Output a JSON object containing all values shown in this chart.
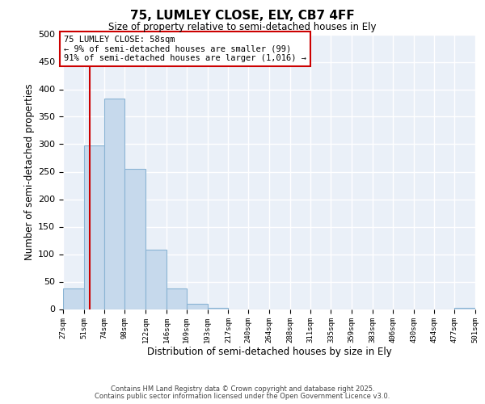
{
  "title": "75, LUMLEY CLOSE, ELY, CB7 4FF",
  "subtitle": "Size of property relative to semi-detached houses in Ely",
  "xlabel": "Distribution of semi-detached houses by size in Ely",
  "ylabel": "Number of semi-detached properties",
  "bin_edges": [
    27,
    51,
    74,
    98,
    122,
    146,
    169,
    193,
    217,
    240,
    264,
    288,
    311,
    335,
    359,
    383,
    406,
    430,
    454,
    477,
    501
  ],
  "bar_heights": [
    37,
    298,
    383,
    255,
    108,
    37,
    10,
    2,
    0,
    0,
    0,
    0,
    0,
    0,
    0,
    0,
    0,
    0,
    0,
    2
  ],
  "bar_color": "#c6d9ec",
  "bar_edgecolor": "#8ab4d4",
  "property_size": 58,
  "property_label": "75 LUMLEY CLOSE: 58sqm",
  "annotation_line1": "← 9% of semi-detached houses are smaller (99)",
  "annotation_line2": "91% of semi-detached houses are larger (1,016) →",
  "vline_color": "#cc0000",
  "annotation_box_edgecolor": "#cc0000",
  "ylim": [
    0,
    500
  ],
  "yticks": [
    0,
    50,
    100,
    150,
    200,
    250,
    300,
    350,
    400,
    450,
    500
  ],
  "background_color": "#eaf0f8",
  "grid_color": "#ffffff",
  "footnote1": "Contains HM Land Registry data © Crown copyright and database right 2025.",
  "footnote2": "Contains public sector information licensed under the Open Government Licence v3.0."
}
